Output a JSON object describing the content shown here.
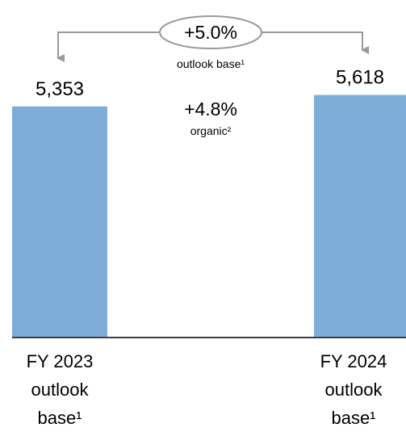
{
  "chart_data": {
    "type": "bar",
    "categories": [
      "FY 2023 outlook base¹",
      "FY 2024 outlook base¹"
    ],
    "values": [
      5353,
      5618
    ],
    "value_labels": [
      "5,353",
      "5,618"
    ],
    "color": "#7fadd9",
    "ylim": [
      0,
      7500
    ],
    "annotations": [
      "+5.0%",
      "outlook base¹",
      "+4.8%",
      "organic²"
    ]
  }
}
